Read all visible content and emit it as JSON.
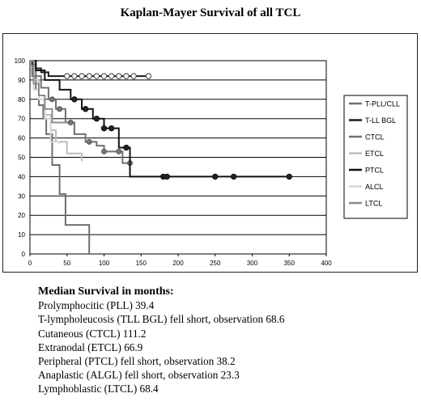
{
  "chart_data": {
    "type": "line",
    "title": "Kaplan-Mayer Survival of all TCL",
    "xlabel": "",
    "ylabel": "",
    "xlim": [
      0,
      400
    ],
    "ylim": [
      0,
      100
    ],
    "x_ticks": [
      0,
      50,
      100,
      150,
      200,
      250,
      300,
      350,
      400
    ],
    "y_ticks": [
      0,
      10,
      20,
      30,
      40,
      50,
      60,
      70,
      80,
      90,
      100
    ],
    "grid": "horizontal",
    "legend_position": "right",
    "series": [
      {
        "name": "T-PLL/CLL",
        "color": "#6f6f6f",
        "line_width": 2,
        "marker": "none",
        "x": [
          0,
          3,
          8,
          12,
          18,
          22,
          30,
          40,
          48,
          80
        ],
        "y": [
          100,
          92,
          85,
          77,
          70,
          62,
          46,
          31,
          15,
          0
        ]
      },
      {
        "name": "T-LL BGL",
        "color": "#1a1a1a",
        "line_width": 2,
        "marker": "circle-open",
        "x": [
          0,
          3,
          8,
          15,
          25,
          160
        ],
        "y": [
          100,
          98,
          96,
          94,
          92,
          92
        ],
        "marker_x": [
          50,
          60,
          70,
          80,
          90,
          100,
          110,
          120,
          130,
          140,
          160
        ]
      },
      {
        "name": "CTCL",
        "color": "#707070",
        "line_width": 2,
        "marker": "circle-gray",
        "x": [
          0,
          8,
          15,
          25,
          35,
          48,
          60,
          75,
          90,
          100,
          125,
          135
        ],
        "y": [
          100,
          92,
          86,
          80,
          75,
          68,
          62,
          58,
          56,
          53,
          47,
          47
        ],
        "marker_x": [
          30,
          40,
          55,
          80,
          100,
          120,
          135
        ]
      },
      {
        "name": "ETCL",
        "color": "#bdbdbd",
        "line_width": 2,
        "marker": "none",
        "x": [
          0,
          5,
          12,
          20,
          28,
          35,
          50,
          70
        ],
        "y": [
          100,
          90,
          80,
          72,
          64,
          58,
          52,
          48
        ]
      },
      {
        "name": "PTCL",
        "color": "#111111",
        "line_width": 2,
        "marker": "circle-filled",
        "x": [
          0,
          8,
          20,
          40,
          55,
          70,
          85,
          100,
          120,
          135,
          350
        ],
        "y": [
          100,
          95,
          90,
          85,
          80,
          75,
          70,
          65,
          55,
          40,
          40
        ],
        "marker_x": [
          60,
          75,
          90,
          100,
          110,
          130,
          180,
          185,
          250,
          275,
          350
        ]
      },
      {
        "name": "ALCL",
        "color": "#d5d5d5",
        "line_width": 2,
        "marker": "none",
        "x": [
          0,
          5,
          12,
          20,
          28,
          40
        ],
        "y": [
          100,
          85,
          80,
          70,
          58,
          57
        ]
      },
      {
        "name": "LTCL",
        "color": "#8c8c8c",
        "line_width": 2,
        "marker": "none",
        "x": [
          0,
          5,
          12,
          20,
          30,
          50
        ],
        "y": [
          100,
          88,
          82,
          75,
          68,
          68
        ]
      }
    ]
  },
  "summary": {
    "heading": "Median Survival in months:",
    "items": [
      "Prolymphocitic (PLL) 39.4",
      "T-lympholeucosis (TLL BGL) fell short, observation 68.6",
      "Cutaneous (CTCL) 111.2",
      "Extranodal (ETCL) 66.9",
      "Peripheral (PTCL) fell short, observation 38.2",
      "Anaplastic (ALGL) fell short, observation 23.3",
      "Lymphoblastic (LTCL) 68.4"
    ]
  }
}
